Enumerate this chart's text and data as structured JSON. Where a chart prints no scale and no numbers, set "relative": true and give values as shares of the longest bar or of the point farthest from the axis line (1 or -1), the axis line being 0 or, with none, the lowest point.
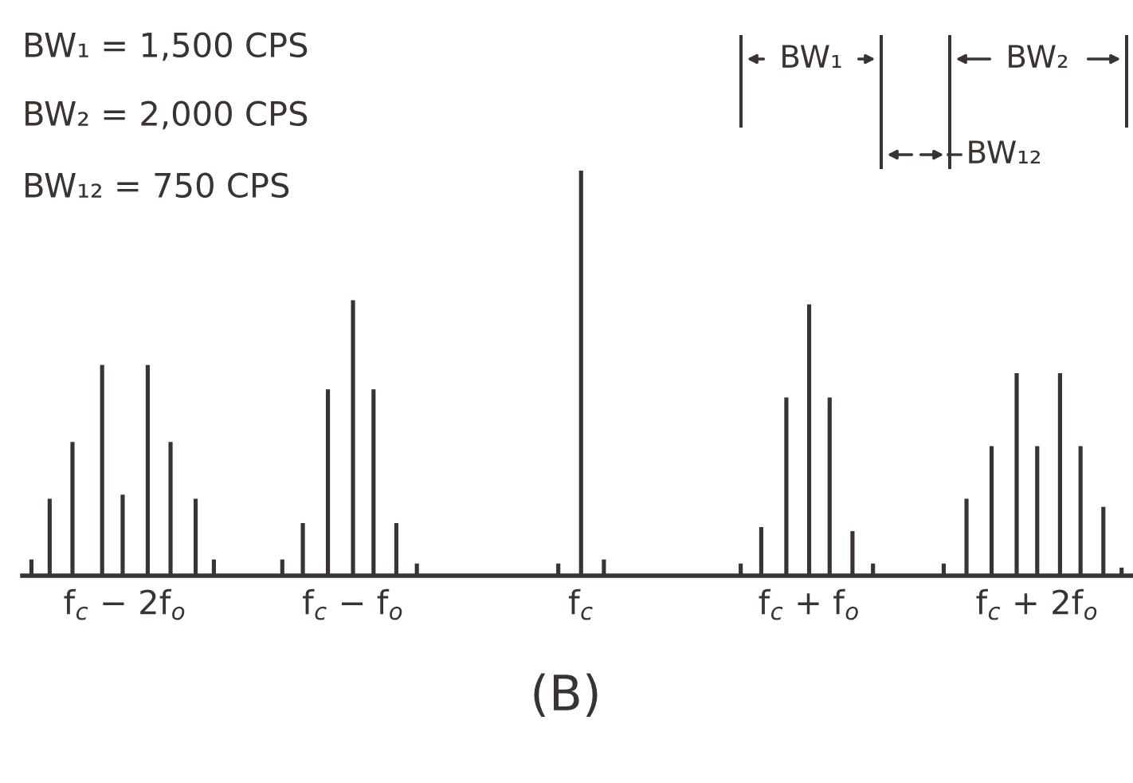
{
  "chart_data": {
    "type": "bar",
    "relative": true,
    "color": "#3a3330",
    "x": [
      -2.41,
      -2.33,
      -2.23,
      -2.1,
      -2.01,
      -1.9,
      -1.8,
      -1.69,
      -1.61,
      -1.31,
      -1.22,
      -1.11,
      -1.0,
      -0.91,
      -0.81,
      -0.72,
      -0.1,
      0,
      0.1,
      0.7,
      0.79,
      0.9,
      1.0,
      1.09,
      1.19,
      1.28,
      1.59,
      1.69,
      1.8,
      1.91,
      2.0,
      2.1,
      2.19,
      2.29,
      2.37
    ],
    "values": [
      0.04,
      0.19,
      0.33,
      0.52,
      0.2,
      0.52,
      0.33,
      0.19,
      0.04,
      0.04,
      0.13,
      0.46,
      0.68,
      0.46,
      0.13,
      0.03,
      0.03,
      1,
      0.04,
      0.03,
      0.12,
      0.44,
      0.67,
      0.44,
      0.11,
      0.03,
      0.03,
      0.19,
      0.32,
      0.5,
      0.32,
      0.5,
      0.32,
      0.17,
      0.02
    ],
    "xlim": [
      -2.45,
      2.42
    ],
    "xticks": [
      {
        "value": -2,
        "label": "f$_{c}$ − 2f$_{o}$"
      },
      {
        "value": -1,
        "label": "f$_{c}$ − f$_{o}$"
      },
      {
        "value": 0,
        "label": "f$_{c}$"
      },
      {
        "value": 1,
        "label": "f$_{c}$ + f$_{o}$"
      },
      {
        "value": 2,
        "label": "f$_{c}$ + 2f$_{o}$"
      }
    ],
    "annotations": [
      "BW₁ = 1,500 CPS",
      "BW₂ = 2,000 CPS",
      "BW₁₂ = 750 CPS",
      "(B)",
      "BW₁",
      "BW₂",
      "BW₁₂"
    ],
    "grid": false,
    "legend": false
  }
}
